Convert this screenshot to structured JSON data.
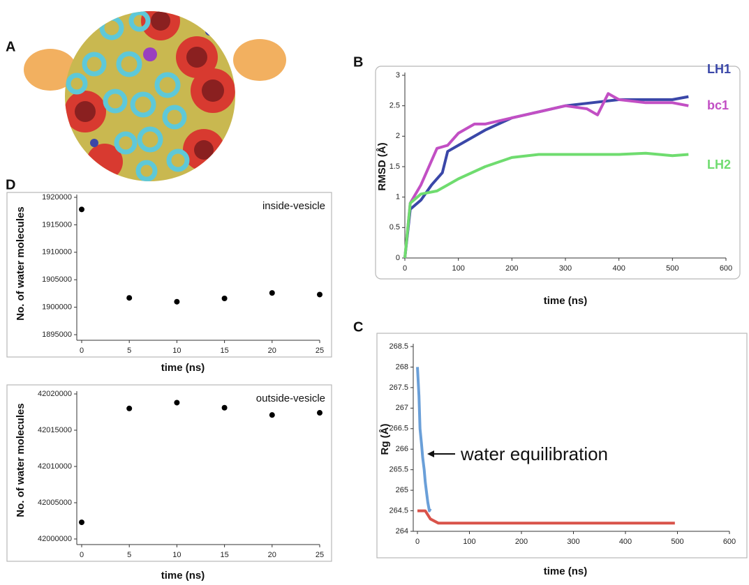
{
  "image_panel_label": "A",
  "chart_data": [
    {
      "type": "line",
      "panel": "B",
      "xlabel": "time (ns)",
      "ylabel": "RMSD (Å)",
      "xlim": [
        0,
        600
      ],
      "ylim": [
        0,
        3
      ],
      "xticks": [
        0,
        100,
        200,
        300,
        400,
        500,
        600
      ],
      "yticks": [
        0,
        0.5,
        1,
        1.5,
        2,
        2.5,
        3
      ],
      "series": [
        {
          "name": "LH1",
          "color": "#3a47a8",
          "x": [
            0,
            10,
            30,
            50,
            70,
            80,
            100,
            150,
            200,
            250,
            300,
            350,
            400,
            450,
            500,
            530
          ],
          "values": [
            0,
            0.8,
            0.95,
            1.2,
            1.4,
            1.75,
            1.85,
            2.1,
            2.3,
            2.4,
            2.5,
            2.55,
            2.6,
            2.6,
            2.6,
            2.65
          ]
        },
        {
          "name": "bc1",
          "color": "#c24fc4",
          "x": [
            0,
            10,
            30,
            60,
            80,
            100,
            130,
            150,
            200,
            250,
            300,
            340,
            360,
            380,
            400,
            450,
            500,
            530
          ],
          "values": [
            0,
            0.9,
            1.2,
            1.8,
            1.85,
            2.05,
            2.2,
            2.2,
            2.3,
            2.4,
            2.5,
            2.45,
            2.35,
            2.7,
            2.6,
            2.55,
            2.55,
            2.5
          ]
        },
        {
          "name": "LH2",
          "color": "#6fdc6f",
          "x": [
            0,
            10,
            30,
            60,
            100,
            150,
            200,
            250,
            300,
            350,
            400,
            450,
            500,
            530
          ],
          "values": [
            0,
            0.9,
            1.05,
            1.1,
            1.3,
            1.5,
            1.65,
            1.7,
            1.7,
            1.7,
            1.7,
            1.72,
            1.68,
            1.7
          ]
        }
      ]
    },
    {
      "type": "line",
      "panel": "C",
      "xlabel": "time (ns)",
      "ylabel": "Rg (Å)",
      "annotation": "water equilibration",
      "xlim": [
        0,
        600
      ],
      "ylim": [
        264,
        268.5
      ],
      "xticks": [
        0,
        100,
        200,
        300,
        400,
        500,
        600
      ],
      "yticks": [
        264,
        264.5,
        265,
        265.5,
        266,
        266.5,
        267,
        267.5,
        268,
        268.5
      ],
      "series": [
        {
          "color": "#6a9fd8",
          "x": [
            0,
            3,
            5,
            8,
            10,
            13,
            15,
            18,
            20,
            23,
            25
          ],
          "values": [
            268,
            267.3,
            266.5,
            266.1,
            265.8,
            265.5,
            265.2,
            264.9,
            264.7,
            264.5,
            264.55
          ]
        },
        {
          "color": "#d9534a",
          "x": [
            0,
            15,
            25,
            40,
            100,
            200,
            300,
            400,
            495
          ],
          "values": [
            264.5,
            264.5,
            264.3,
            264.2,
            264.2,
            264.2,
            264.2,
            264.2,
            264.2
          ]
        }
      ]
    },
    {
      "type": "scatter",
      "panel": "D",
      "title": "inside-vesicle",
      "xlabel": "time (ns)",
      "ylabel": "No. of water molecules",
      "xlim": [
        0,
        25
      ],
      "ylim": [
        1895000,
        1920000
      ],
      "xticks": [
        0,
        5,
        10,
        15,
        20,
        25
      ],
      "yticks": [
        1895000,
        1900000,
        1905000,
        1910000,
        1915000,
        1920000
      ],
      "color": "#000000",
      "x": [
        0,
        5,
        10,
        15,
        20,
        25
      ],
      "values": [
        1917800,
        1901700,
        1901000,
        1901600,
        1902600,
        1902300
      ]
    },
    {
      "type": "scatter",
      "title": "outside-vesicle",
      "xlabel": "time (ns)",
      "ylabel": "No. of water molecules",
      "xlim": [
        0,
        25
      ],
      "ylim": [
        42000000,
        42020000
      ],
      "xticks": [
        0,
        5,
        10,
        15,
        20,
        25
      ],
      "yticks": [
        42000000,
        42005000,
        42010000,
        42015000,
        42020000
      ],
      "color": "#000000",
      "x": [
        0,
        5,
        10,
        15,
        20,
        25
      ],
      "values": [
        42002300,
        42018000,
        42018800,
        42018100,
        42017100,
        42017400
      ]
    }
  ]
}
